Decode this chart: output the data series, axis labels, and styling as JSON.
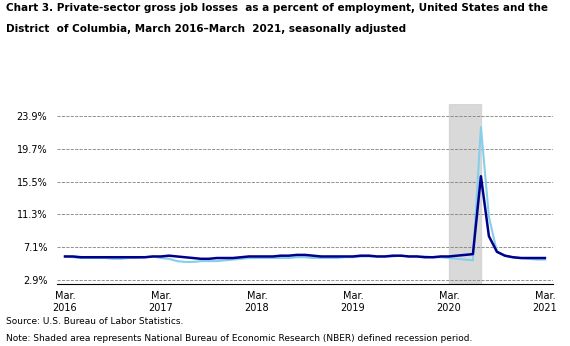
{
  "title_line1": "Chart 3. Private-sector gross job losses  as a percent of employment, United States and the",
  "title_line2": "District  of Columbia, March 2016–March  2021, seasonally adjusted",
  "us_label": "United States",
  "dc_label": "District of Columbia",
  "us_color": "#00008B",
  "dc_color": "#87CEEB",
  "us_linewidth": 1.8,
  "dc_linewidth": 1.5,
  "source_text": "Source: U.S. Bureau of Labor Statistics.",
  "note_text": "Note: Shaded area represents National Bureau of Economic Research (NBER) defined recession period.",
  "yticks": [
    2.9,
    7.1,
    11.3,
    15.5,
    19.7,
    23.9
  ],
  "ytick_labels": [
    "2.9%",
    "7.1%",
    "11.3%",
    "15.5%",
    "19.7%",
    "23.9%"
  ],
  "ylim": [
    2.4,
    25.5
  ],
  "recession_start": 48,
  "recession_end": 52,
  "x_tick_positions": [
    0,
    12,
    24,
    36,
    48,
    60
  ],
  "x_tick_labels": [
    "Mar.\n2016",
    "Mar.\n2017",
    "Mar.\n2018",
    "Mar.\n2019",
    "Mar.\n2020",
    "Mar.\n2021"
  ],
  "us_data": [
    5.9,
    5.9,
    5.8,
    5.8,
    5.8,
    5.8,
    5.8,
    5.8,
    5.8,
    5.8,
    5.8,
    5.9,
    5.9,
    6.0,
    5.9,
    5.8,
    5.7,
    5.6,
    5.6,
    5.7,
    5.7,
    5.7,
    5.8,
    5.9,
    5.9,
    5.9,
    5.9,
    6.0,
    6.0,
    6.1,
    6.1,
    6.0,
    5.9,
    5.9,
    5.9,
    5.9,
    5.9,
    6.0,
    6.0,
    5.9,
    5.9,
    6.0,
    6.0,
    5.9,
    5.9,
    5.8,
    5.8,
    5.9,
    5.9,
    6.0,
    6.1,
    6.2,
    16.2,
    8.5,
    6.5,
    6.0,
    5.8,
    5.7,
    5.7,
    5.7,
    5.7
  ],
  "dc_data": [
    5.9,
    5.8,
    5.7,
    5.7,
    5.7,
    5.7,
    5.6,
    5.6,
    5.7,
    5.7,
    5.8,
    5.9,
    5.7,
    5.6,
    5.3,
    5.2,
    5.2,
    5.3,
    5.3,
    5.3,
    5.4,
    5.5,
    5.6,
    5.7,
    5.7,
    5.7,
    5.7,
    5.7,
    5.7,
    5.8,
    5.8,
    5.7,
    5.7,
    5.7,
    5.7,
    5.8,
    5.8,
    5.9,
    5.9,
    5.9,
    5.9,
    5.9,
    6.0,
    5.9,
    5.9,
    5.9,
    5.8,
    5.8,
    5.7,
    5.6,
    5.5,
    5.4,
    22.5,
    11.0,
    6.5,
    6.0,
    5.8,
    5.7,
    5.6,
    5.5,
    5.5
  ]
}
